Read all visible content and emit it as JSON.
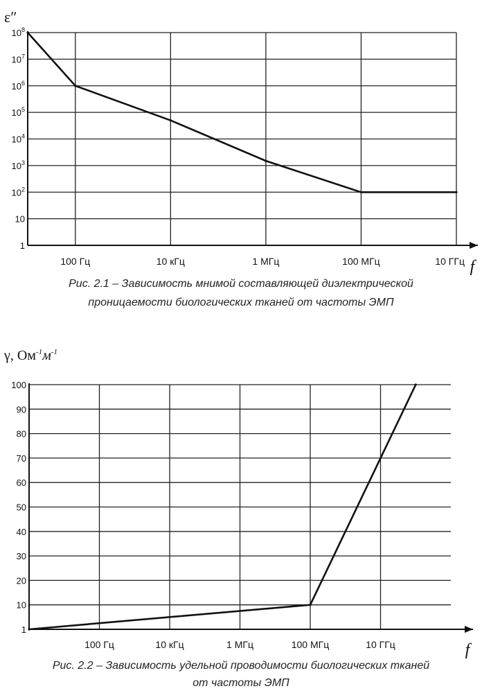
{
  "chart_data": [
    {
      "type": "line",
      "ylabel": "ε″",
      "xlabel": "f",
      "y_scale": "log",
      "ylim": [
        1,
        100000000
      ],
      "y_ticks": [
        {
          "value": 1,
          "label": "1"
        },
        {
          "value": 10,
          "label": "10"
        },
        {
          "value": 100,
          "label": "10",
          "sup": "2"
        },
        {
          "value": 1000,
          "label": "10",
          "sup": "3"
        },
        {
          "value": 10000,
          "label": "10",
          "sup": "4"
        },
        {
          "value": 100000,
          "label": "10",
          "sup": "5"
        },
        {
          "value": 1000000,
          "label": "10",
          "sup": "6"
        },
        {
          "value": 10000000,
          "label": "10",
          "sup": "7"
        },
        {
          "value": 100000000,
          "label": "10",
          "sup": "8"
        }
      ],
      "x_scale": "log",
      "xlim": [
        10,
        10000000000
      ],
      "x_ticks": [
        {
          "value": 100,
          "label": "100 Гц"
        },
        {
          "value": 10000,
          "label": "10 кГц"
        },
        {
          "value": 1000000,
          "label": "1 МГц"
        },
        {
          "value": 100000000,
          "label": "100 МГц"
        },
        {
          "value": 10000000000,
          "label": "10 ГГц"
        }
      ],
      "series": [
        {
          "x": [
            10,
            100,
            10000,
            1000000,
            100000000,
            10000000000
          ],
          "y": [
            100000000,
            1000000,
            50000,
            1500,
            100,
            100
          ]
        }
      ],
      "caption_lines": [
        "Рис. 2.1 – Зависимость мнимой составляющей диэлектрической",
        "проницаемости  биологических тканей от частоты ЭМП"
      ]
    },
    {
      "type": "line",
      "ylabel": "γ, Ом",
      "ylabel_sup1": "-1",
      "ylabel_unit2": "м",
      "ylabel_sup2": "-1",
      "xlabel": "f",
      "ylim": [
        1,
        100
      ],
      "y_ticks": [
        {
          "value": 1,
          "label": "1"
        },
        {
          "value": 10,
          "label": "10"
        },
        {
          "value": 20,
          "label": "20"
        },
        {
          "value": 30,
          "label": "30"
        },
        {
          "value": 40,
          "label": "40"
        },
        {
          "value": 50,
          "label": "50"
        },
        {
          "value": 60,
          "label": "60"
        },
        {
          "value": 70,
          "label": "70"
        },
        {
          "value": 80,
          "label": "80"
        },
        {
          "value": 90,
          "label": "90"
        },
        {
          "value": 100,
          "label": "100"
        }
      ],
      "x_scale": "log",
      "xlim": [
        1,
        1000000000000
      ],
      "x_ticks": [
        {
          "value": 100,
          "label": "100 Гц"
        },
        {
          "value": 10000,
          "label": "10 кГц"
        },
        {
          "value": 1000000,
          "label": "1 МГц"
        },
        {
          "value": 100000000,
          "label": "100 МГц"
        },
        {
          "value": 10000000000,
          "label": "10 ГГц"
        }
      ],
      "series": [
        {
          "x": [
            1,
            100000000,
            100000000000
          ],
          "y": [
            1,
            10,
            100
          ]
        }
      ],
      "caption_lines": [
        "Рис. 2.2 – Зависимость удельной проводимости биологических тканей",
        "от частоты ЭМП"
      ]
    }
  ]
}
